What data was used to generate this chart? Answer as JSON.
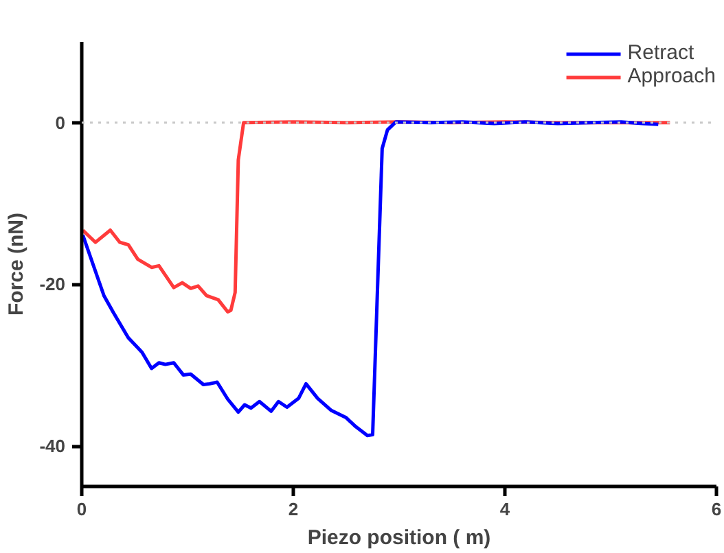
{
  "chart_data": {
    "type": "line",
    "xlabel": "Piezo position ( m)",
    "ylabel": "Force (nN)",
    "xlim": [
      0,
      6
    ],
    "ylim": [
      -45,
      10
    ],
    "xticks": [
      0,
      2,
      4,
      6
    ],
    "yticks": [
      -40,
      -20,
      0
    ],
    "legend": "top right",
    "grid": false,
    "marker": "none",
    "line_style": "solid",
    "ref_lines": [
      {
        "axis": "y",
        "value": 0,
        "color": "#c8c8c8",
        "line_style": "dotted"
      }
    ],
    "series": [
      {
        "name": "Retract",
        "color": "#0000ff",
        "x": [
          0.01,
          0.21,
          0.3,
          0.44,
          0.57,
          0.66,
          0.73,
          0.79,
          0.87,
          0.96,
          1.03,
          1.15,
          1.21,
          1.28,
          1.38,
          1.48,
          1.54,
          1.6,
          1.68,
          1.79,
          1.86,
          1.94,
          2.05,
          2.12,
          2.23,
          2.36,
          2.5,
          2.59,
          2.7,
          2.75,
          2.84,
          2.89,
          2.97,
          3.3,
          3.6,
          3.9,
          4.2,
          4.5,
          4.8,
          5.1,
          5.3,
          5.45
        ],
        "values": [
          -13.9,
          -21.4,
          -23.5,
          -26.6,
          -28.4,
          -30.4,
          -29.7,
          -29.9,
          -29.7,
          -31.2,
          -31.1,
          -32.4,
          -32.3,
          -32.1,
          -34.2,
          -35.8,
          -34.9,
          -35.3,
          -34.5,
          -35.7,
          -34.5,
          -35.2,
          -34.1,
          -32.3,
          -34.1,
          -35.6,
          -36.5,
          -37.6,
          -38.7,
          -38.6,
          -3.2,
          -0.9,
          0.1,
          0,
          0.1,
          -0.1,
          0.1,
          -0.1,
          0,
          0.1,
          -0.1,
          -0.2
        ]
      },
      {
        "name": "Approach",
        "color": "#ff3b3b",
        "x": [
          0.01,
          0.13,
          0.27,
          0.36,
          0.44,
          0.53,
          0.66,
          0.73,
          0.87,
          0.95,
          1.03,
          1.1,
          1.18,
          1.29,
          1.38,
          1.41,
          1.45,
          1.48,
          1.53,
          2.0,
          2.5,
          3.0,
          3.5,
          4.0,
          4.5,
          5.0,
          5.56
        ],
        "values": [
          -13.3,
          -14.8,
          -13.3,
          -14.8,
          -15.1,
          -16.9,
          -17.9,
          -17.7,
          -20.4,
          -19.8,
          -20.5,
          -20.2,
          -21.4,
          -21.9,
          -23.4,
          -23.2,
          -21.0,
          -4.6,
          0,
          0.1,
          0,
          0.1,
          0,
          0.1,
          0,
          0,
          0
        ]
      }
    ]
  }
}
